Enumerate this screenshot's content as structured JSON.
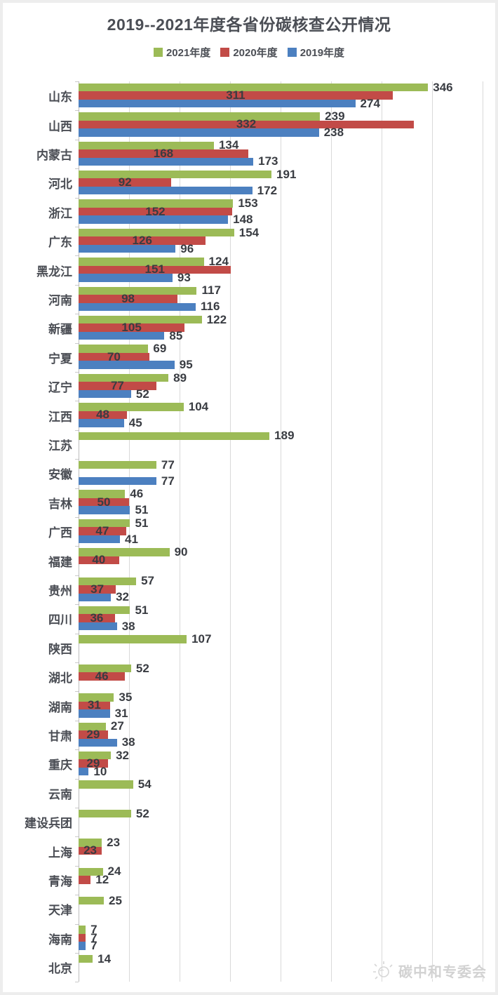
{
  "title": "2019--2021年度各省份碳核查公开情况",
  "legend": [
    {
      "label": "2021年度",
      "color": "#9cbb57"
    },
    {
      "label": "2020年度",
      "color": "#c24b47"
    },
    {
      "label": "2019年度",
      "color": "#4c80c0"
    }
  ],
  "watermark": {
    "text": "碳中和专委会",
    "icon": "sun-logo"
  },
  "colors": {
    "green_2021": "#9cbb57",
    "red_2020": "#c24b47",
    "blue_2019": "#4c80c0",
    "gridline": "#d9d9d9",
    "text": "#4a4d54"
  },
  "chart_data": {
    "type": "bar",
    "orientation": "horizontal",
    "title": "2019--2021年度各省份碳核查公开情况",
    "categories": [
      "山东",
      "山西",
      "内蒙古",
      "河北",
      "浙江",
      "广东",
      "黑龙江",
      "河南",
      "新疆",
      "宁夏",
      "辽宁",
      "江西",
      "江苏",
      "安徽",
      "吉林",
      "广西",
      "福建",
      "贵州",
      "四川",
      "陕西",
      "湖北",
      "湖南",
      "甘肃",
      "重庆",
      "云南",
      "建设兵团",
      "上海",
      "青海",
      "天津",
      "海南",
      "北京"
    ],
    "series": [
      {
        "name": "2021年度",
        "color": "#9cbb57",
        "values": [
          346,
          239,
          134,
          191,
          153,
          154,
          124,
          117,
          122,
          69,
          89,
          104,
          189,
          77,
          46,
          51,
          90,
          57,
          51,
          107,
          52,
          35,
          27,
          32,
          54,
          52,
          23,
          24,
          25,
          7,
          14
        ]
      },
      {
        "name": "2020年度",
        "color": "#c24b47",
        "values": [
          311,
          332,
          168,
          92,
          152,
          126,
          151,
          98,
          105,
          70,
          77,
          48,
          null,
          null,
          50,
          47,
          40,
          37,
          36,
          null,
          46,
          31,
          29,
          29,
          null,
          null,
          23,
          12,
          null,
          7,
          null
        ]
      },
      {
        "name": "2019年度",
        "color": "#4c80c0",
        "values": [
          274,
          238,
          173,
          172,
          148,
          96,
          93,
          116,
          85,
          95,
          52,
          45,
          null,
          77,
          51,
          41,
          null,
          32,
          38,
          null,
          null,
          31,
          38,
          10,
          null,
          null,
          null,
          null,
          null,
          7,
          null
        ]
      }
    ],
    "xlim": [
      0,
      400
    ],
    "gridline_interval": 50,
    "grid": true,
    "legend_position": "top",
    "value_labels": true
  }
}
